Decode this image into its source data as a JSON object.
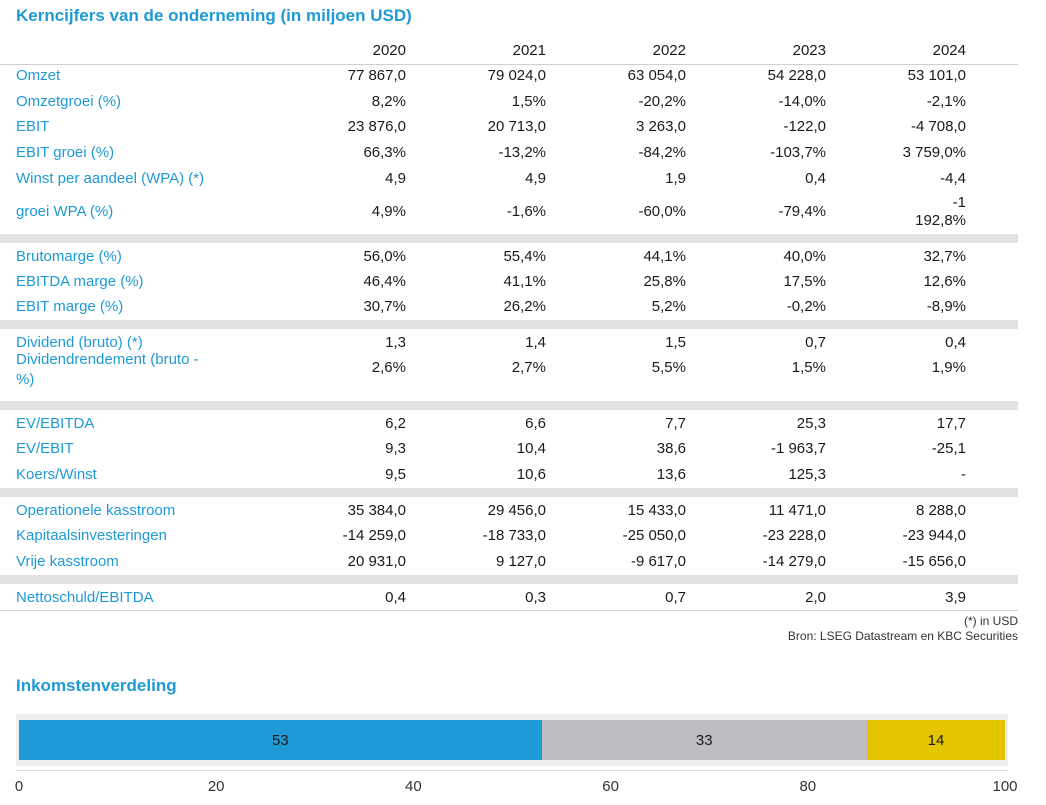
{
  "table": {
    "title": "Kerncijfers van de onderneming (in miljoen USD)",
    "years": [
      "2020",
      "2021",
      "2022",
      "2023",
      "2024"
    ],
    "rows": [
      {
        "label": "Omzet",
        "values": [
          "77 867,0",
          "79 024,0",
          "63 054,0",
          "54 228,0",
          "53 101,0"
        ]
      },
      {
        "label": "Omzetgroei (%)",
        "values": [
          "8,2%",
          "1,5%",
          "-20,2%",
          "-14,0%",
          "-2,1%"
        ]
      },
      {
        "label": "EBIT",
        "values": [
          "23 876,0",
          "20 713,0",
          "3 263,0",
          "-122,0",
          "-4 708,0"
        ]
      },
      {
        "label": "EBIT groei (%)",
        "values": [
          "66,3%",
          "-13,2%",
          "-84,2%",
          "-103,7%",
          "3 759,0%"
        ]
      },
      {
        "label": "Winst per aandeel (WPA) (*)",
        "values": [
          "4,9",
          "4,9",
          "1,9",
          "0,4",
          "-4,4"
        ]
      },
      {
        "label": "groei WPA (%)",
        "values": [
          "4,9%",
          "-1,6%",
          "-60,0%",
          "-79,4%",
          "-1"
        ],
        "extra": "192,8%"
      },
      {
        "label": "Brutomarge (%)",
        "values": [
          "56,0%",
          "55,4%",
          "44,1%",
          "40,0%",
          "32,7%"
        ]
      },
      {
        "label": "EBITDA marge (%)",
        "values": [
          "46,4%",
          "41,1%",
          "25,8%",
          "17,5%",
          "12,6%"
        ]
      },
      {
        "label": "EBIT marge (%)",
        "values": [
          "30,7%",
          "26,2%",
          "5,2%",
          "-0,2%",
          "-8,9%"
        ]
      },
      {
        "label": "Dividend (bruto) (*)",
        "values": [
          "1,3",
          "1,4",
          "1,5",
          "0,7",
          "0,4"
        ]
      },
      {
        "label": "Dividendrendement (bruto -",
        "label2": "%)",
        "values": [
          "2,6%",
          "2,7%",
          "5,5%",
          "1,5%",
          "1,9%"
        ]
      },
      {
        "label": "EV/EBITDA",
        "values": [
          "6,2",
          "6,6",
          "7,7",
          "25,3",
          "17,7"
        ]
      },
      {
        "label": "EV/EBIT",
        "values": [
          "9,3",
          "10,4",
          "38,6",
          "-1 963,7",
          "-25,1"
        ]
      },
      {
        "label": "Koers/Winst",
        "values": [
          "9,5",
          "10,6",
          "13,6",
          "125,3",
          "-"
        ]
      },
      {
        "label": "Operationele kasstroom",
        "values": [
          "35 384,0",
          "29 456,0",
          "15 433,0",
          "11 471,0",
          "8 288,0"
        ]
      },
      {
        "label": "Kapitaalsinvesteringen",
        "values": [
          "-14 259,0",
          "-18 733,0",
          "-25 050,0",
          "-23 228,0",
          "-23 944,0"
        ]
      },
      {
        "label": "Vrije kasstroom",
        "values": [
          "20 931,0",
          "9 127,0",
          "-9 617,0",
          "-14 279,0",
          "-15 656,0"
        ]
      },
      {
        "label": "Nettoschuld/EBITDA",
        "values": [
          "0,4",
          "0,3",
          "0,7",
          "2,0",
          "3,9"
        ]
      }
    ],
    "note": "(*) in USD",
    "source": "Bron: LSEG Datastream en KBC Securities"
  },
  "income": {
    "title": "Inkomstenverdeling",
    "segments": [
      {
        "value": 53,
        "label": "53",
        "color": "#1e9ad6"
      },
      {
        "value": 33,
        "label": "33",
        "color": "#bebec2"
      },
      {
        "value": 14,
        "label": "14",
        "color": "#e5c500"
      }
    ],
    "axis_ticks": [
      "0",
      "20",
      "40",
      "60",
      "80",
      "100"
    ],
    "axis_max": 100
  }
}
